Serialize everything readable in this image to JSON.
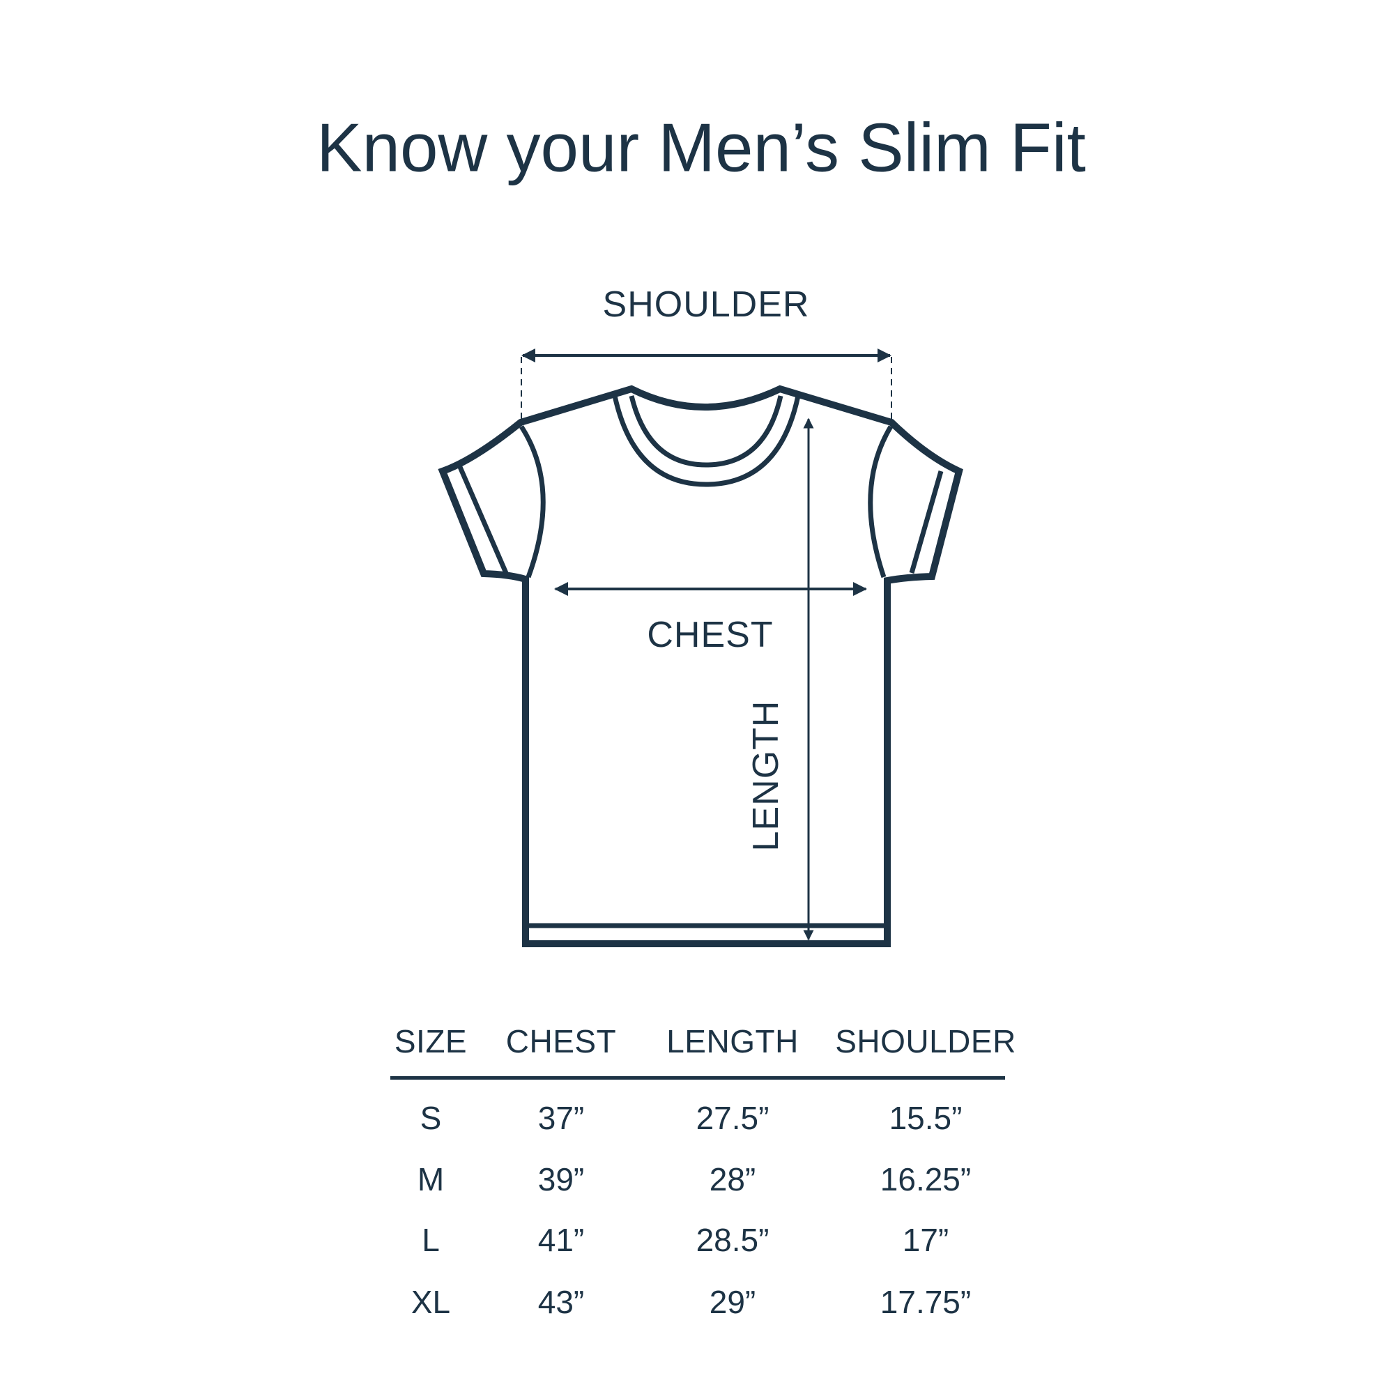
{
  "title": "Know your Men’s Slim Fit",
  "diagram": {
    "shoulder_label": "SHOULDER",
    "chest_label": "CHEST",
    "length_label": "LENGTH",
    "line_color": "#1d3345"
  },
  "table": {
    "headers": [
      "SIZE",
      "CHEST",
      "LENGTH",
      "SHOULDER"
    ],
    "rows": [
      [
        "S",
        "37”",
        "27.5”",
        "15.5”"
      ],
      [
        "M",
        "39”",
        "28”",
        "16.25”"
      ],
      [
        "L",
        "41”",
        "28.5”",
        "17”"
      ],
      [
        "XL",
        "43”",
        "29”",
        "17.75”"
      ]
    ]
  }
}
